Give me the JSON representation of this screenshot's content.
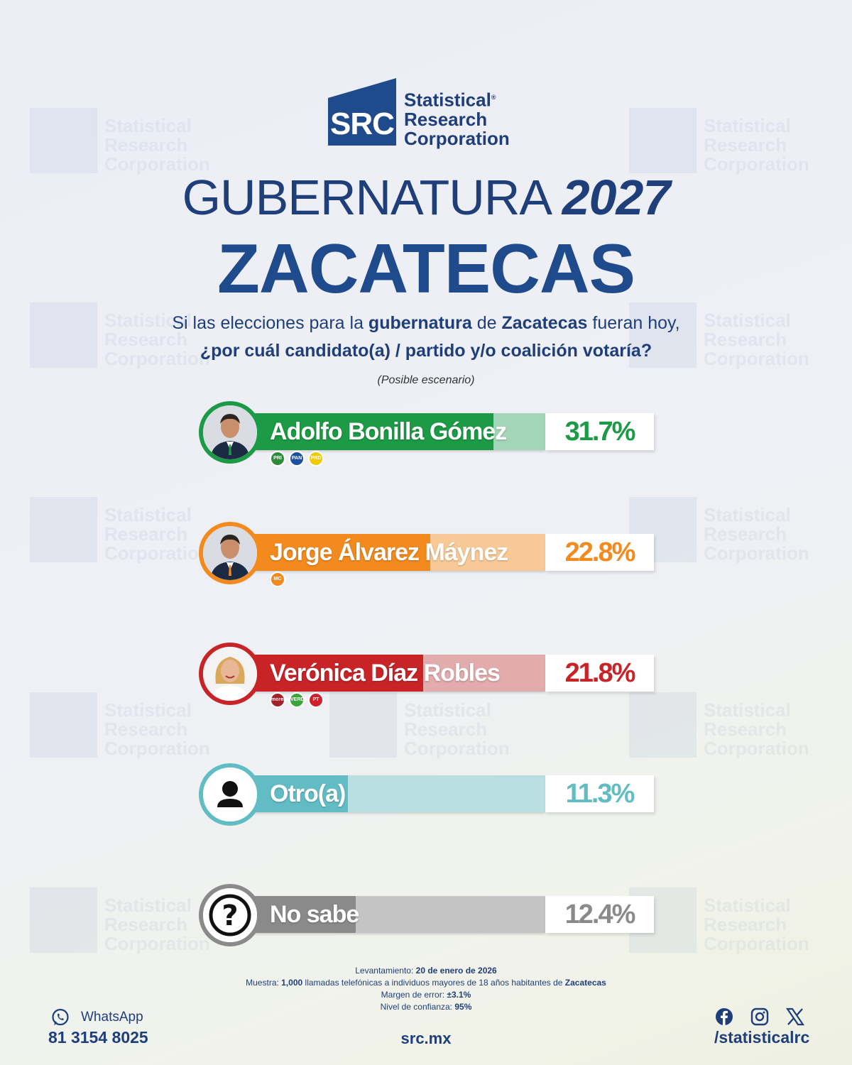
{
  "brand": {
    "logo_mark": "SRC",
    "name_lines": [
      "Statistical",
      "Research",
      "Corporation"
    ],
    "registered": "®",
    "color": "#1f4a8c"
  },
  "header": {
    "heading_thin": "GUBERNATURA",
    "heading_year": "2027",
    "state": "ZACATECAS"
  },
  "question": {
    "line1_parts": [
      "Si las elecciones para la ",
      "gubernatura",
      " de ",
      "Zacatecas",
      " fueran hoy,"
    ],
    "line2": "¿por cuál candidato(a) / partido y/o coalición votaría?",
    "scenario": "(Posible escenario)"
  },
  "chart_data": {
    "type": "bar",
    "orientation": "horizontal",
    "xlim": [
      0,
      100
    ],
    "categories": [
      "Adolfo Bonilla Gómez",
      "Jorge Álvarez Máynez",
      "Verónica Díaz Robles",
      "Otro(a)",
      "No sabe"
    ],
    "values": [
      31.7,
      22.8,
      21.8,
      11.3,
      12.4
    ],
    "value_labels": [
      "31.7%",
      "22.8%",
      "21.8%",
      "11.3%",
      "12.4%"
    ],
    "colors": [
      "#1c9a45",
      "#f28a1e",
      "#c82428",
      "#62bcc4",
      "#8a8a8a"
    ],
    "light_colors": [
      "#a4d5b8",
      "#f7c996",
      "#e2abac",
      "#b8dfe2",
      "#c4c4c4"
    ],
    "avatars": [
      "man-portrait",
      "man-portrait",
      "woman-portrait",
      "person-icon",
      "question-icon"
    ],
    "parties": [
      [
        {
          "label": "PRI",
          "color": "#2e8b3a"
        },
        {
          "label": "PAN",
          "color": "#1c4fa0"
        },
        {
          "label": "PRD",
          "color": "#f2c800"
        }
      ],
      [
        {
          "label": "MC",
          "color": "#f28a1e"
        }
      ],
      [
        {
          "label": "morena",
          "color": "#a0222a"
        },
        {
          "label": "VERDE",
          "color": "#3aa63a"
        },
        {
          "label": "PT",
          "color": "#d2202a"
        }
      ],
      [],
      []
    ]
  },
  "methodology": {
    "survey_date_label": "Levantamiento:",
    "survey_date": "20 de enero de 2026",
    "sample_label": "Muestra:",
    "sample_size": "1,000",
    "sample_mid": "llamadas telefónicas a individuos mayores de 18 años habitantes de",
    "sample_place": "Zacatecas",
    "margin_label": "Margen de error:",
    "margin": "±3.1%",
    "confidence_label": "Nivel de confianza:",
    "confidence": "95%"
  },
  "footer": {
    "whatsapp_label": "WhatsApp",
    "whatsapp_number": "81 3154 8025",
    "website": "src.mx",
    "social_handle": "/statisticalrc",
    "social_icons": [
      "facebook-icon",
      "instagram-icon",
      "x-icon"
    ]
  }
}
